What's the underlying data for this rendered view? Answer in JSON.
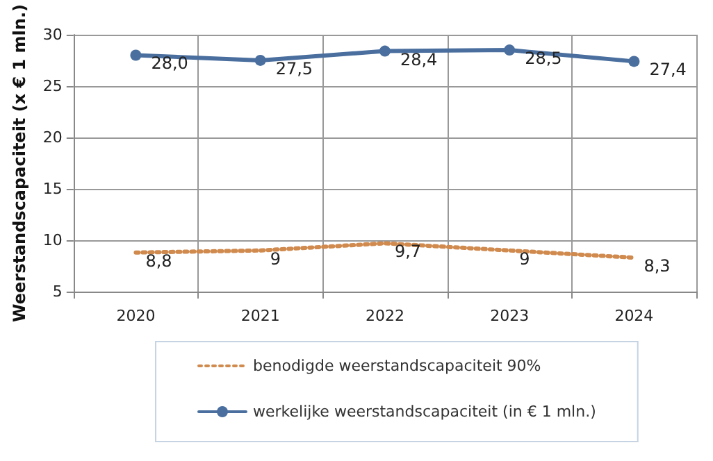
{
  "chart_data": {
    "type": "line",
    "ylabel": "Weerstandscapaciteit (x € 1 mln.)",
    "categories": [
      "2020",
      "2021",
      "2022",
      "2023",
      "2024"
    ],
    "series": [
      {
        "name": "benodigde weerstandscapaciteit 90%",
        "color": "#d08a4e",
        "values": [
          8.8,
          9,
          9.7,
          9,
          8.3
        ],
        "value_labels": [
          "8,8",
          "9",
          "9,7",
          "9",
          "8,3"
        ],
        "marker": "none",
        "line_style": "dotted"
      },
      {
        "name": "werkelijke weerstandscapaciteit (in € 1 mln.)",
        "color": "#4a6f9f",
        "values": [
          28.0,
          27.5,
          28.4,
          28.5,
          27.4
        ],
        "value_labels": [
          "28,0",
          "27,5",
          "28,4",
          "28,5",
          "27,4"
        ],
        "marker": "circle",
        "line_style": "solid"
      }
    ],
    "ylim": [
      5,
      30
    ],
    "yticks": [
      5,
      10,
      15,
      20,
      25,
      30
    ],
    "grid": true,
    "legend": "bottom"
  }
}
